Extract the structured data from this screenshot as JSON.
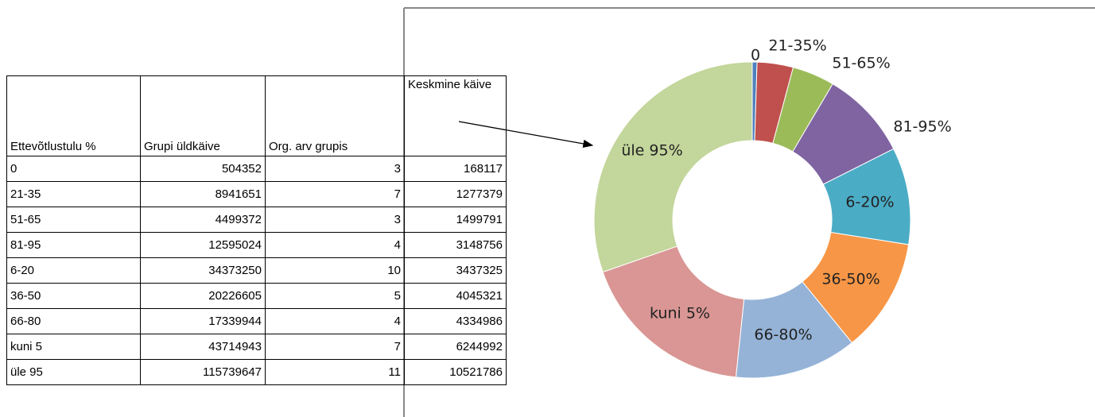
{
  "table": {
    "header": [
      "Ettevõtlustulu %",
      "Grupi üldkäive",
      "Org. arv grupis",
      "Keskmine käive"
    ],
    "rows": [
      [
        "0",
        504352,
        3
      ],
      [
        "21-35",
        8941651,
        7
      ],
      [
        "51-65",
        4499372,
        3
      ],
      [
        "81-95",
        12595024,
        4
      ],
      [
        "6-20",
        34373250,
        10
      ],
      [
        "36-50",
        20226605,
        5
      ],
      [
        "66-80",
        17339944,
        4
      ],
      [
        "kuni 5",
        43714943,
        7
      ],
      [
        "üle 95",
        115739647,
        11
      ]
    ]
  },
  "chart_data": {
    "type": "donut",
    "categories": [
      "0",
      "21-35%",
      "51-65%",
      "81-95%",
      "6-20%",
      "36-50%",
      "66-80%",
      "kuni 5%",
      "üle 95%"
    ],
    "values": [
      168117,
      1277379,
      1499791,
      3148756,
      3437325,
      4045321,
      4334986,
      6244992,
      10521786
    ],
    "colors": [
      "#4f81bd",
      "#c0504d",
      "#9bbb59",
      "#8064a2",
      "#4bacc6",
      "#f79646",
      "#95b3d7",
      "#d99694",
      "#c3d69b"
    ]
  }
}
